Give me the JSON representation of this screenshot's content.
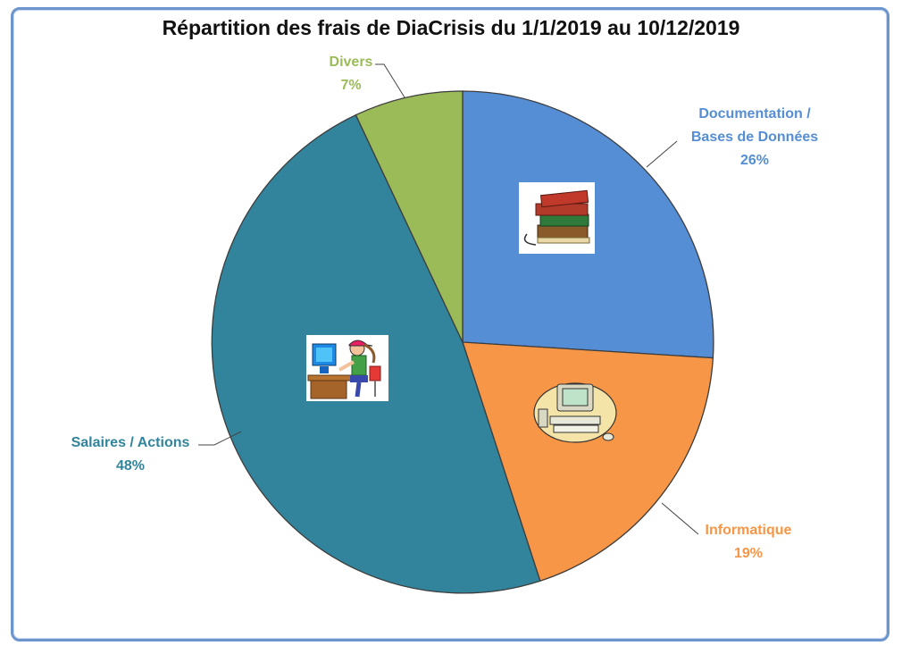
{
  "chart_data": {
    "type": "pie",
    "title": "Répartition des frais de DiaCrisis du 1/1/2019 au 10/12/2019",
    "slices": [
      {
        "label_lines": [
          "Documentation /",
          "Bases de Données"
        ],
        "percent_label": "26%",
        "value": 26,
        "color": "#558ed5",
        "icon": "books-icon"
      },
      {
        "label_lines": [
          "Informatique"
        ],
        "percent_label": "19%",
        "value": 19,
        "color": "#f79646",
        "icon": "computer-icon"
      },
      {
        "label_lines": [
          "Salaires / Actions"
        ],
        "percent_label": "48%",
        "value": 48,
        "color": "#31849b",
        "icon": "person-at-computer-icon"
      },
      {
        "label_lines": [
          "Divers"
        ],
        "percent_label": "7%",
        "value": 7,
        "color": "#9bbb59",
        "icon": ""
      }
    ],
    "legend": "none",
    "start_angle": "12 o'clock",
    "direction": "clockwise"
  }
}
